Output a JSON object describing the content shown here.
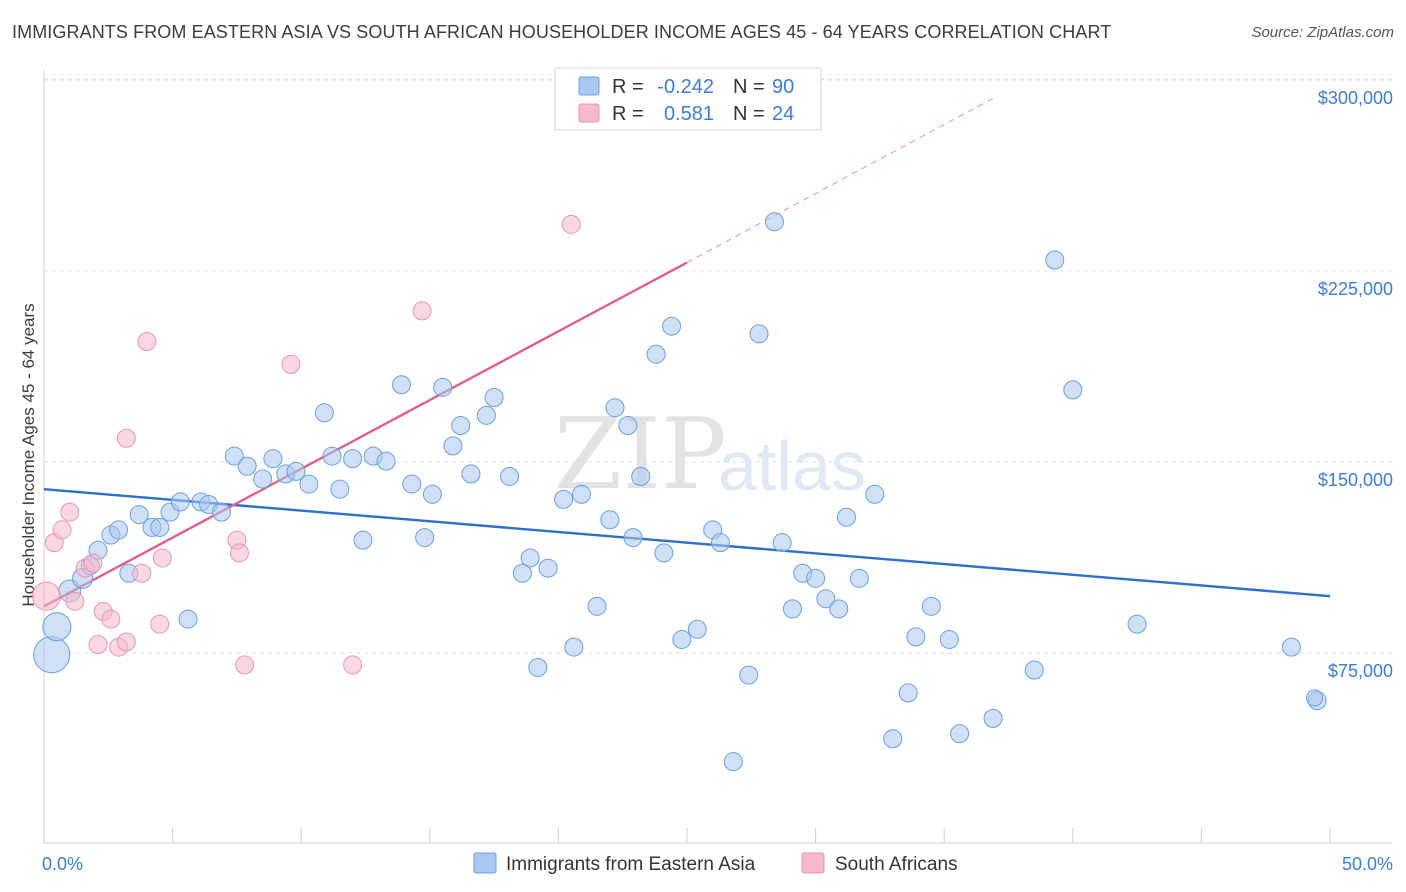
{
  "header": {
    "title": "IMMIGRANTS FROM EASTERN ASIA VS SOUTH AFRICAN HOUSEHOLDER INCOME AGES 45 - 64 YEARS CORRELATION CHART",
    "source": "Source: ZipAtlas.com"
  },
  "watermark": {
    "zip": "ZIP",
    "atlas": "atlas"
  },
  "chart_data": {
    "type": "scatter",
    "title": "IMMIGRANTS FROM EASTERN ASIA VS SOUTH AFRICAN HOUSEHOLDER INCOME AGES 45 - 64 YEARS CORRELATION CHART",
    "xlabel": "",
    "ylabel": "Householder Income Ages 45 - 64 years",
    "xlim": [
      0,
      50
    ],
    "ylim": [
      5000,
      310000
    ],
    "x_tick_labels": [
      "0.0%",
      "50.0%"
    ],
    "y_ticks": [
      75000,
      150000,
      225000,
      300000
    ],
    "y_tick_labels": [
      "$75,000",
      "$150,000",
      "$225,000",
      "$300,000"
    ],
    "grid": true,
    "legend": {
      "position": "top-center",
      "entries": [
        {
          "r_label": "R =",
          "r_value": "-0.242",
          "n_label": "N =",
          "n_value": "90",
          "color": "#a9c8f0"
        },
        {
          "r_label": "R =",
          "r_value": "0.581",
          "n_label": "N =",
          "n_value": "24",
          "color": "#f6b8cb"
        }
      ]
    },
    "series": [
      {
        "name": "Immigrants from Eastern Asia",
        "color": "#a9c8f0",
        "stroke": "#6a9fe0",
        "trend_color": "#2f6fcc",
        "trend": {
          "x0": 0,
          "y0": 146000,
          "x1": 50,
          "y1": 104000
        },
        "points": [
          [
            0.3,
            81000,
            18
          ],
          [
            0.5,
            92000,
            14
          ],
          [
            1.0,
            106000,
            11
          ],
          [
            1.5,
            111000,
            10
          ],
          [
            1.8,
            116000,
            9
          ],
          [
            2.1,
            122000,
            9
          ],
          [
            2.6,
            128000,
            9
          ],
          [
            2.9,
            130000,
            9
          ],
          [
            3.3,
            113000,
            9
          ],
          [
            3.7,
            136000,
            9
          ],
          [
            4.2,
            131000,
            9
          ],
          [
            4.5,
            131000,
            9
          ],
          [
            4.9,
            137000,
            9
          ],
          [
            5.3,
            141000,
            9
          ],
          [
            5.6,
            95000,
            9
          ],
          [
            6.1,
            141000,
            9
          ],
          [
            6.4,
            140000,
            9
          ],
          [
            6.9,
            137000,
            9
          ],
          [
            7.4,
            159000,
            9
          ],
          [
            7.9,
            155000,
            9
          ],
          [
            8.5,
            150000,
            9
          ],
          [
            8.9,
            158000,
            9
          ],
          [
            9.4,
            152000,
            9
          ],
          [
            9.8,
            153000,
            9
          ],
          [
            10.3,
            148000,
            9
          ],
          [
            10.9,
            176000,
            9
          ],
          [
            11.2,
            159000,
            9
          ],
          [
            11.5,
            146000,
            9
          ],
          [
            12.0,
            158000,
            9
          ],
          [
            12.4,
            126000,
            9
          ],
          [
            12.8,
            159000,
            9
          ],
          [
            13.3,
            157000,
            9
          ],
          [
            13.9,
            187000,
            9
          ],
          [
            14.3,
            148000,
            9
          ],
          [
            14.8,
            127000,
            9
          ],
          [
            15.1,
            144000,
            9
          ],
          [
            15.5,
            186000,
            9
          ],
          [
            15.9,
            163000,
            9
          ],
          [
            16.2,
            171000,
            9
          ],
          [
            16.6,
            152000,
            9
          ],
          [
            17.2,
            175000,
            9
          ],
          [
            17.5,
            182000,
            9
          ],
          [
            18.1,
            151000,
            9
          ],
          [
            18.6,
            113000,
            9
          ],
          [
            18.9,
            119000,
            9
          ],
          [
            19.2,
            76000,
            9
          ],
          [
            19.6,
            115000,
            9
          ],
          [
            20.2,
            142000,
            9
          ],
          [
            20.6,
            84000,
            9
          ],
          [
            20.9,
            144000,
            9
          ],
          [
            21.5,
            100000,
            9
          ],
          [
            22.0,
            134000,
            9
          ],
          [
            22.2,
            178000,
            9
          ],
          [
            22.7,
            171000,
            9
          ],
          [
            22.9,
            127000,
            9
          ],
          [
            23.2,
            151000,
            9
          ],
          [
            23.8,
            199000,
            9
          ],
          [
            24.1,
            121000,
            9
          ],
          [
            24.4,
            210000,
            9
          ],
          [
            24.8,
            87000,
            9
          ],
          [
            25.4,
            91000,
            9
          ],
          [
            26.0,
            130000,
            9
          ],
          [
            26.3,
            125000,
            9
          ],
          [
            26.8,
            39000,
            9
          ],
          [
            27.4,
            73000,
            9
          ],
          [
            27.8,
            207000,
            9
          ],
          [
            28.4,
            251000,
            9
          ],
          [
            28.7,
            125000,
            9
          ],
          [
            29.1,
            99000,
            9
          ],
          [
            29.5,
            113000,
            9
          ],
          [
            30.0,
            111000,
            9
          ],
          [
            30.4,
            103000,
            9
          ],
          [
            30.9,
            99000,
            9
          ],
          [
            31.2,
            135000,
            9
          ],
          [
            31.7,
            111000,
            9
          ],
          [
            32.3,
            144000,
            9
          ],
          [
            33.0,
            48000,
            9
          ],
          [
            33.6,
            66000,
            9
          ],
          [
            33.9,
            88000,
            9
          ],
          [
            34.5,
            100000,
            9
          ],
          [
            35.2,
            87000,
            9
          ],
          [
            35.6,
            50000,
            9
          ],
          [
            36.9,
            56000,
            9
          ],
          [
            38.5,
            75000,
            9
          ],
          [
            39.3,
            236000,
            9
          ],
          [
            40.0,
            185000,
            9
          ],
          [
            42.5,
            93000,
            9
          ],
          [
            48.5,
            84000,
            9
          ],
          [
            49.5,
            63000,
            9
          ],
          [
            49.4,
            64000,
            8
          ]
        ]
      },
      {
        "name": "South Africans",
        "color": "#f6b8cb",
        "stroke": "#e896b0",
        "trend_color": "#e0608a",
        "trend": {
          "x0": 0,
          "y0": 100000,
          "x1": 25,
          "y1": 235000
        },
        "trend_ext": {
          "x0": 25,
          "y0": 235000,
          "x1": 37,
          "y1": 300000
        },
        "points": [
          [
            0.1,
            104000,
            14
          ],
          [
            0.4,
            125000,
            9
          ],
          [
            0.7,
            130000,
            9
          ],
          [
            1.0,
            137000,
            9
          ],
          [
            1.2,
            102000,
            9
          ],
          [
            1.6,
            115000,
            9
          ],
          [
            1.9,
            117000,
            9
          ],
          [
            2.1,
            85000,
            9
          ],
          [
            2.3,
            98000,
            9
          ],
          [
            2.6,
            95000,
            9
          ],
          [
            2.9,
            84000,
            9
          ],
          [
            3.2,
            86000,
            9
          ],
          [
            3.2,
            166000,
            9
          ],
          [
            3.8,
            113000,
            9
          ],
          [
            4.0,
            204000,
            9
          ],
          [
            4.5,
            93000,
            9
          ],
          [
            4.6,
            119000,
            9
          ],
          [
            7.5,
            126000,
            9
          ],
          [
            7.6,
            121000,
            9
          ],
          [
            7.8,
            77000,
            9
          ],
          [
            9.6,
            195000,
            9
          ],
          [
            12.0,
            77000,
            9
          ],
          [
            14.7,
            216000,
            9
          ],
          [
            20.5,
            250000,
            9
          ]
        ]
      }
    ]
  }
}
